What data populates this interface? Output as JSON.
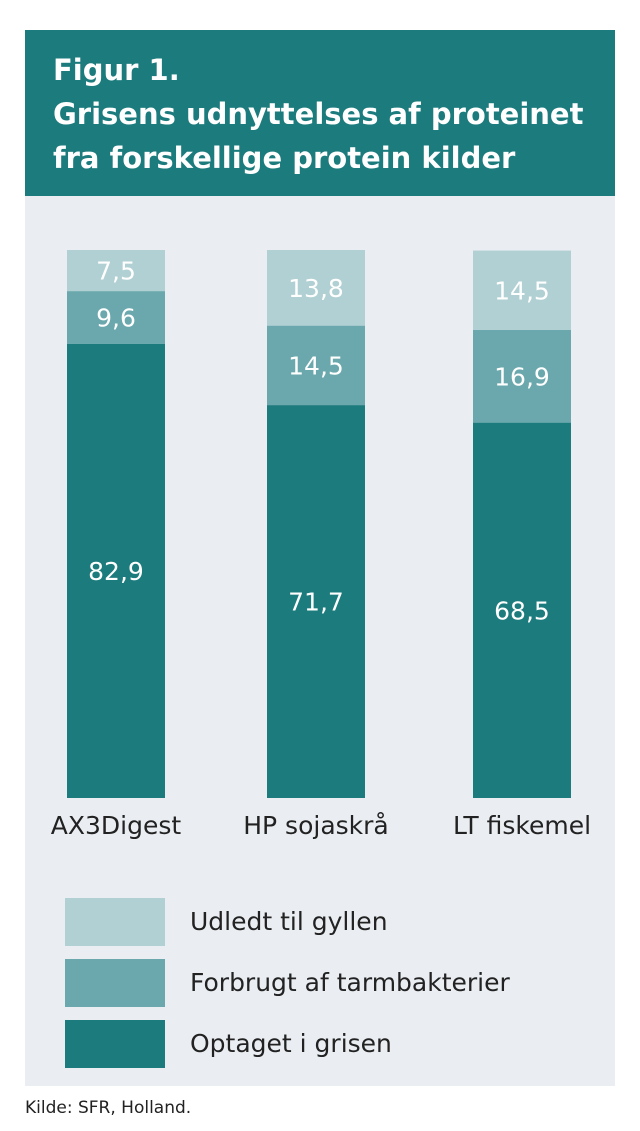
{
  "title": {
    "line1": "Figur 1.",
    "line2": "Grisens udnyttelses af proteinet",
    "line3": "fra forskellige protein kilder"
  },
  "chart_data": {
    "type": "bar",
    "stacked": true,
    "categories": [
      "AX3Digest",
      "HP sojaskrå",
      "LT fiskemel"
    ],
    "series": [
      {
        "name": "Optaget i grisen",
        "color": "#1c7b7d",
        "values": [
          82.9,
          71.7,
          68.5
        ],
        "labels": [
          "82,9",
          "71,7",
          "68,5"
        ]
      },
      {
        "name": "Forbrugt af tarmbakterier",
        "color": "#6aa8ad",
        "values": [
          9.6,
          14.5,
          16.9
        ],
        "labels": [
          "9,6",
          "14,5",
          "16,9"
        ]
      },
      {
        "name": "Udledt til gyllen",
        "color": "#b1d0d3",
        "values": [
          7.5,
          13.8,
          14.5
        ],
        "labels": [
          "7,5",
          "13,8",
          "14,5"
        ]
      }
    ],
    "ylim": [
      0,
      100
    ],
    "grid": false,
    "legend_position": "bottom"
  },
  "legend": [
    {
      "label": "Udledt til gyllen",
      "color": "#b1d0d3"
    },
    {
      "label": "Forbrugt af tarmbakterier",
      "color": "#6aa8ad"
    },
    {
      "label": "Optaget i grisen",
      "color": "#1c7b7d"
    }
  ],
  "footer": "Kilde: SFR, Holland."
}
